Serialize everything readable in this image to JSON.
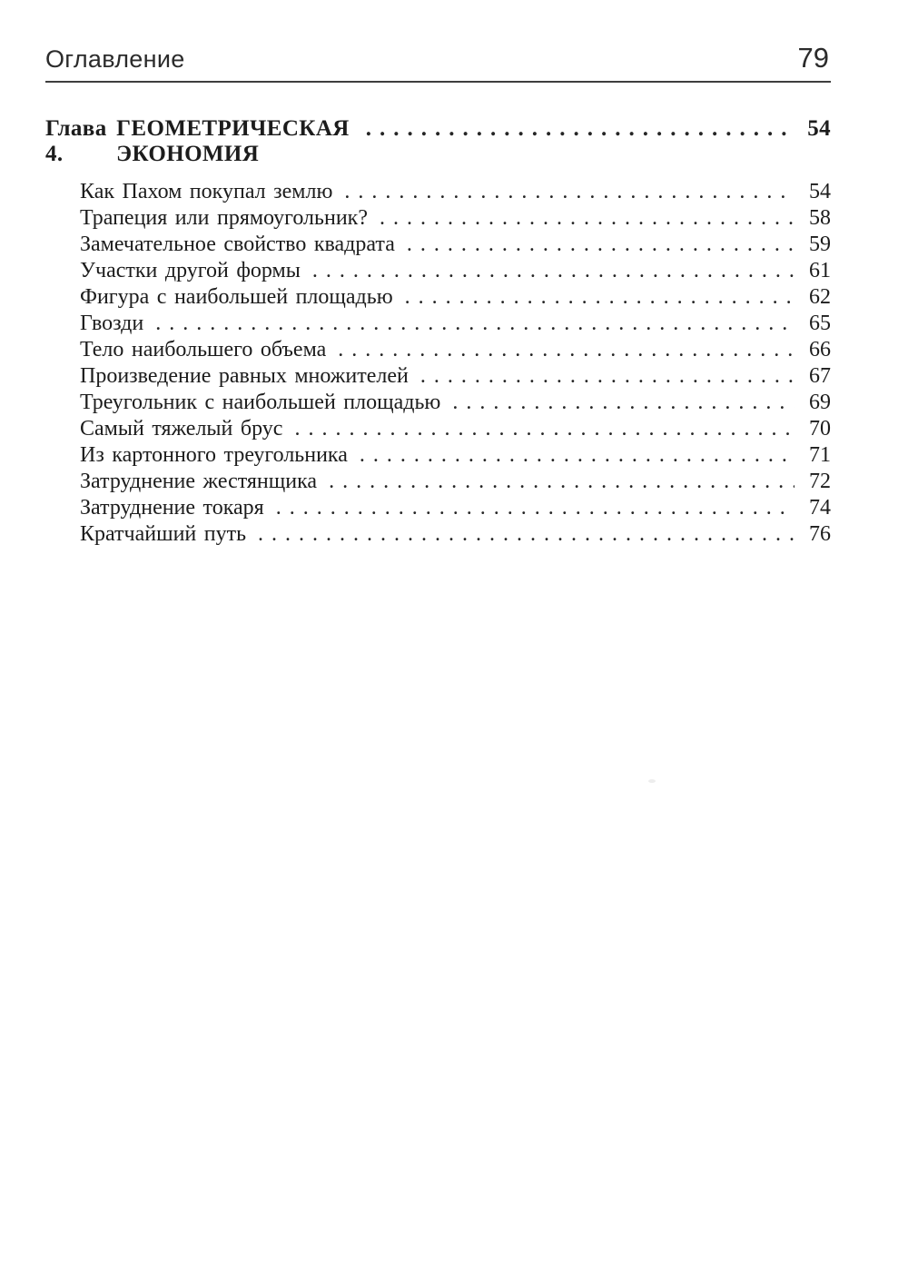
{
  "page": {
    "header": {
      "running_title": "Оглавление",
      "page_number": "79"
    },
    "chapter": {
      "label": "Глава 4.",
      "title": "ГЕОМЕТРИЧЕСКАЯ ЭКОНОМИЯ",
      "page": "54"
    },
    "entries": [
      {
        "title": "Как Пахом покупал землю",
        "page": "54"
      },
      {
        "title": "Трапеция или прямоугольник?",
        "page": "58"
      },
      {
        "title": "Замечательное свойство квадрата",
        "page": "59"
      },
      {
        "title": "Участки другой формы",
        "page": "61"
      },
      {
        "title": "Фигура с наибольшей площадью",
        "page": "62"
      },
      {
        "title": "Гвозди",
        "page": "65"
      },
      {
        "title": "Тело наибольшего объема",
        "page": "66"
      },
      {
        "title": "Произведение равных множителей",
        "page": "67"
      },
      {
        "title": "Треугольник с наибольшей площадью",
        "page": "69"
      },
      {
        "title": "Самый тяжелый брус",
        "page": "70"
      },
      {
        "title": "Из картонного треугольника",
        "page": "71"
      },
      {
        "title": "Затруднение жестянщика",
        "page": "72"
      },
      {
        "title": "Затруднение токаря",
        "page": "74"
      },
      {
        "title": "Кратчайший путь",
        "page": "76"
      }
    ],
    "colors": {
      "background": "#ffffff",
      "text": "#1c1c1c",
      "rule": "#3e3e3e"
    }
  }
}
